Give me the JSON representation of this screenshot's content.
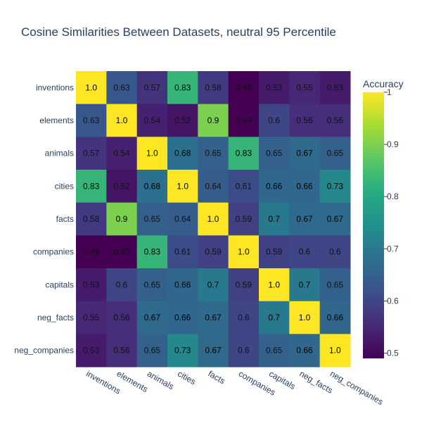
{
  "chart_data": {
    "type": "heatmap",
    "title": "Cosine Similarities Between Datasets, neutral 95 Percentile",
    "x": [
      "inventions",
      "elements",
      "animals",
      "cities",
      "facts",
      "companies",
      "capitals",
      "neg_facts",
      "neg_companies"
    ],
    "y": [
      "inventions",
      "elements",
      "animals",
      "cities",
      "facts",
      "companies",
      "capitals",
      "neg_facts",
      "neg_companies"
    ],
    "z": [
      [
        1.0,
        0.63,
        0.57,
        0.83,
        0.58,
        0.49,
        0.53,
        0.55,
        0.53
      ],
      [
        0.63,
        1.0,
        0.54,
        0.52,
        0.9,
        0.49,
        0.6,
        0.56,
        0.56
      ],
      [
        0.57,
        0.54,
        1.0,
        0.68,
        0.65,
        0.83,
        0.65,
        0.67,
        0.65
      ],
      [
        0.83,
        0.52,
        0.68,
        1.0,
        0.64,
        0.61,
        0.66,
        0.66,
        0.73
      ],
      [
        0.58,
        0.9,
        0.65,
        0.64,
        1.0,
        0.59,
        0.7,
        0.67,
        0.67
      ],
      [
        0.49,
        0.49,
        0.83,
        0.61,
        0.59,
        1.0,
        0.59,
        0.6,
        0.6
      ],
      [
        0.53,
        0.6,
        0.65,
        0.66,
        0.7,
        0.59,
        1.0,
        0.7,
        0.65
      ],
      [
        0.55,
        0.56,
        0.67,
        0.66,
        0.67,
        0.6,
        0.7,
        1.0,
        0.66
      ],
      [
        0.53,
        0.56,
        0.65,
        0.73,
        0.67,
        0.6,
        0.65,
        0.66,
        1.0
      ]
    ],
    "z_labels": [
      [
        "1.0",
        "0.63",
        "0.57",
        "0.83",
        "0.58",
        "0.49",
        "0.53",
        "0.55",
        "0.53"
      ],
      [
        "0.63",
        "1.0",
        "0.54",
        "0.52",
        "0.9",
        "0.49",
        "0.6",
        "0.56",
        "0.56"
      ],
      [
        "0.57",
        "0.54",
        "1.0",
        "0.68",
        "0.65",
        "0.83",
        "0.65",
        "0.67",
        "0.65"
      ],
      [
        "0.83",
        "0.52",
        "0.68",
        "1.0",
        "0.64",
        "0.61",
        "0.66",
        "0.66",
        "0.73"
      ],
      [
        "0.58",
        "0.9",
        "0.65",
        "0.64",
        "1.0",
        "0.59",
        "0.7",
        "0.67",
        "0.67"
      ],
      [
        "0.49",
        "0.49",
        "0.83",
        "0.61",
        "0.59",
        "1.0",
        "0.59",
        "0.6",
        "0.6"
      ],
      [
        "0.53",
        "0.6",
        "0.65",
        "0.66",
        "0.7",
        "0.59",
        "1.0",
        "0.7",
        "0.65"
      ],
      [
        "0.55",
        "0.56",
        "0.67",
        "0.66",
        "0.67",
        "0.6",
        "0.7",
        "1.0",
        "0.66"
      ],
      [
        "0.53",
        "0.56",
        "0.65",
        "0.73",
        "0.67",
        "0.6",
        "0.65",
        "0.66",
        "1.0"
      ]
    ],
    "zrange": [
      0.49,
      1.0
    ],
    "colorscale": "viridis",
    "colorbar": {
      "title": "Accuracy",
      "ticks": [
        0.5,
        0.6,
        0.7,
        0.8,
        0.9,
        1
      ],
      "tick_labels": [
        "0.5",
        "0.6",
        "0.7",
        "0.8",
        "0.9",
        "1"
      ]
    },
    "xlabel": "",
    "ylabel": "",
    "grid": false
  }
}
